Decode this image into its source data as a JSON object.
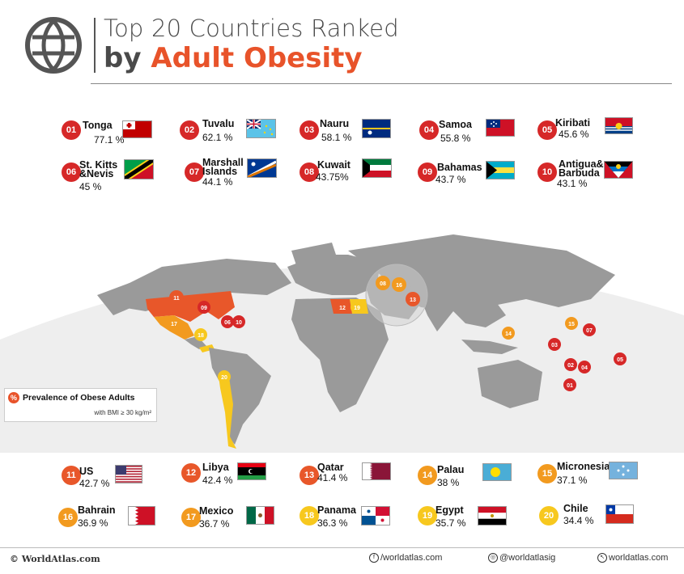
{
  "title": {
    "line1": "Top 20 Countries Ranked",
    "line2_prefix": "by ",
    "line2_highlight": "Adult Obesity"
  },
  "top_rows": [
    {
      "rank": "01",
      "name": "Tonga",
      "pct": "77.1 %",
      "color": "r"
    },
    {
      "rank": "02",
      "name": "Tuvalu",
      "pct": "62.1 %",
      "color": "r"
    },
    {
      "rank": "03",
      "name": "Nauru",
      "pct": "58.1 %",
      "color": "r"
    },
    {
      "rank": "04",
      "name": "Samoa",
      "pct": "55.8 %",
      "color": "r"
    },
    {
      "rank": "05",
      "name": "Kiribati",
      "pct": "45.6 %",
      "color": "r"
    },
    {
      "rank": "06",
      "name": "St. Kitts &Nevis",
      "pct": "45 %",
      "color": "r"
    },
    {
      "rank": "07",
      "name": "Marshall Islands",
      "pct": "44.1 %",
      "color": "r"
    },
    {
      "rank": "08",
      "name": "Kuwait",
      "pct": "43.75%",
      "color": "r"
    },
    {
      "rank": "09",
      "name": "Bahamas",
      "pct": "43.7 %",
      "color": "r"
    },
    {
      "rank": "10",
      "name": "Antigua& Barbuda",
      "pct": "43.1 %",
      "color": "r"
    }
  ],
  "bottom_rows": [
    {
      "rank": "11",
      "name": "US",
      "pct": "42.7 %",
      "color": "o"
    },
    {
      "rank": "12",
      "name": "Libya",
      "pct": "42.4 %",
      "color": "o"
    },
    {
      "rank": "13",
      "name": "Qatar",
      "pct": "41.4 %",
      "color": "o"
    },
    {
      "rank": "14",
      "name": "Palau",
      "pct": "38 %",
      "color": "a"
    },
    {
      "rank": "15",
      "name": "Micronesia",
      "pct": "37.1 %",
      "color": "a"
    },
    {
      "rank": "16",
      "name": "Bahrain",
      "pct": "36.9 %",
      "color": "a"
    },
    {
      "rank": "17",
      "name": "Mexico",
      "pct": "36.7 %",
      "color": "a"
    },
    {
      "rank": "18",
      "name": "Panama",
      "pct": "36.3 %",
      "color": "y"
    },
    {
      "rank": "19",
      "name": "Egypt",
      "pct": "35.7 %",
      "color": "y"
    },
    {
      "rank": "20",
      "name": "Chile",
      "pct": "34.4 %",
      "color": "y"
    }
  ],
  "legend": {
    "symbol": "%",
    "title": "Prevalence of Obese Adults",
    "subtitle": "with BMI ≥ 30 kg/m²"
  },
  "footer": {
    "brand": "© WorldAtlas.com",
    "facebook": "/worldatlas.com",
    "instagram": "@worldatlasig",
    "web": "worldatlas.com"
  },
  "map_pins": [
    "01",
    "02",
    "03",
    "04",
    "05",
    "06",
    "07",
    "08",
    "09",
    "10",
    "11",
    "12",
    "13",
    "14",
    "15",
    "16",
    "17",
    "18",
    "19",
    "20"
  ],
  "colors": {
    "accent": "#e8532a",
    "rank_1_10": "#d62828",
    "rank_11_13": "#e8572a",
    "rank_14_17": "#f29a1f",
    "rank_18_20": "#f7c81e",
    "land": "#9a9a9a",
    "ocean": "#ffffff"
  }
}
